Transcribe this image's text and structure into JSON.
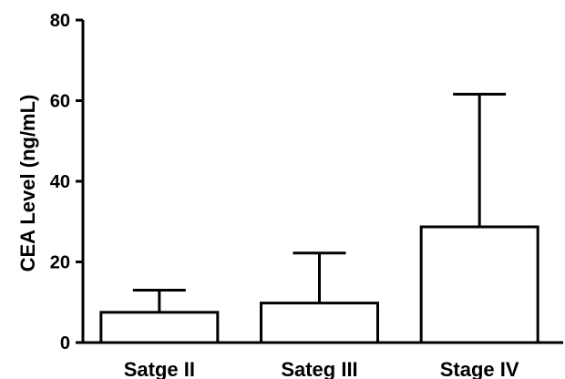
{
  "chart_data": {
    "type": "bar",
    "categories": [
      "Satge II",
      "Sateg III",
      "Stage IV"
    ],
    "values": [
      7.5,
      9.8,
      28.7
    ],
    "error_upper": [
      13.0,
      22.2,
      61.6
    ],
    "error_bars": "upper only",
    "ylabel": "CEA Level (ng/mL)",
    "xlabel": "",
    "title": "",
    "ylim": [
      0,
      80
    ],
    "yticks": [
      "0",
      "20",
      "40",
      "60",
      "80"
    ],
    "grid": false,
    "legend": "none",
    "colors": {
      "bar_fill": "#ffffff",
      "bar_stroke": "#000000",
      "axis": "#000000"
    }
  }
}
